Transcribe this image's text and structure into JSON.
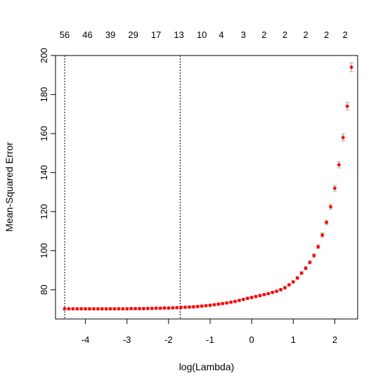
{
  "chart_data": {
    "type": "scatter",
    "title": "",
    "xlabel": "log(Lambda)",
    "ylabel": "Mean-Squared Error",
    "xlim": [
      -4.72,
      2.55
    ],
    "ylim": [
      65,
      200
    ],
    "x_ticks": [
      {
        "value": -4,
        "label": "-4"
      },
      {
        "value": -3,
        "label": "-3"
      },
      {
        "value": -2,
        "label": "-2"
      },
      {
        "value": -1,
        "label": "-1"
      },
      {
        "value": 0,
        "label": "0"
      },
      {
        "value": 1,
        "label": "1"
      },
      {
        "value": 2,
        "label": "2"
      }
    ],
    "y_ticks": [
      {
        "value": 80,
        "label": "80"
      },
      {
        "value": 100,
        "label": "100"
      },
      {
        "value": 120,
        "label": "120"
      },
      {
        "value": 140,
        "label": "140"
      },
      {
        "value": 160,
        "label": "160"
      },
      {
        "value": 180,
        "label": "180"
      },
      {
        "value": 200,
        "label": "200"
      }
    ],
    "top_axis": [
      {
        "value": -4.5,
        "label": "56"
      },
      {
        "value": -3.95,
        "label": "46"
      },
      {
        "value": -3.4,
        "label": "39"
      },
      {
        "value": -2.85,
        "label": "29"
      },
      {
        "value": -2.3,
        "label": "17"
      },
      {
        "value": -1.75,
        "label": "13"
      },
      {
        "value": -1.2,
        "label": "10"
      },
      {
        "value": -0.73,
        "label": "4"
      },
      {
        "value": -0.2,
        "label": "3"
      },
      {
        "value": 0.3,
        "label": "2"
      },
      {
        "value": 0.8,
        "label": "2"
      },
      {
        "value": 1.3,
        "label": "2"
      },
      {
        "value": 1.8,
        "label": "2"
      },
      {
        "value": 2.25,
        "label": "2"
      }
    ],
    "vlines": [
      -4.5,
      -1.72
    ],
    "point_color": "#ff0000",
    "errorbar_color": "#a9a9a9",
    "grid": false,
    "legend": "none",
    "series": [
      {
        "x": [
          -4.5,
          -4.4,
          -4.3,
          -4.2,
          -4.1,
          -4.0,
          -3.9,
          -3.8,
          -3.7,
          -3.6,
          -3.5,
          -3.4,
          -3.3,
          -3.2,
          -3.1,
          -3.0,
          -2.9,
          -2.8,
          -2.7,
          -2.6,
          -2.5,
          -2.4,
          -2.3,
          -2.2,
          -2.1,
          -2.0,
          -1.9,
          -1.8,
          -1.7,
          -1.6,
          -1.5,
          -1.4,
          -1.3,
          -1.2,
          -1.1,
          -1.0,
          -0.9,
          -0.8,
          -0.7,
          -0.6,
          -0.5,
          -0.4,
          -0.3,
          -0.2,
          -0.1,
          0.0,
          0.1,
          0.2,
          0.3,
          0.4,
          0.5,
          0.6,
          0.7,
          0.8,
          0.9,
          1.0,
          1.1,
          1.2,
          1.3,
          1.4,
          1.5,
          1.6,
          1.7,
          1.8,
          1.9,
          2.0,
          2.1,
          2.2,
          2.3,
          2.4
        ],
        "y": [
          70.2,
          70.2,
          70.2,
          70.2,
          70.2,
          70.2,
          70.2,
          70.2,
          70.2,
          70.2,
          70.2,
          70.2,
          70.2,
          70.2,
          70.2,
          70.2,
          70.3,
          70.3,
          70.3,
          70.3,
          70.4,
          70.4,
          70.5,
          70.5,
          70.6,
          70.6,
          70.7,
          70.8,
          70.9,
          71.0,
          71.1,
          71.2,
          71.4,
          71.6,
          71.8,
          72.0,
          72.3,
          72.6,
          72.9,
          73.2,
          73.6,
          74.0,
          74.5,
          75.0,
          75.6,
          76.0,
          76.5,
          77.0,
          77.5,
          78.0,
          78.6,
          79.2,
          80.0,
          81.0,
          82.5,
          84.0,
          86.0,
          88.5,
          91.0,
          94.0,
          97.5,
          102.0,
          108.0,
          114.5,
          122.5,
          132.0,
          144.0,
          158.0,
          174.0,
          194.0
        ],
        "err": [
          0.5,
          0.5,
          0.5,
          0.5,
          0.5,
          0.5,
          0.5,
          0.5,
          0.5,
          0.5,
          0.5,
          0.5,
          0.5,
          0.5,
          0.5,
          0.5,
          0.5,
          0.5,
          0.5,
          0.5,
          0.5,
          0.5,
          0.5,
          0.5,
          0.5,
          0.5,
          0.5,
          0.5,
          0.5,
          0.5,
          0.5,
          0.5,
          0.5,
          0.5,
          0.5,
          0.5,
          0.5,
          0.5,
          0.5,
          0.5,
          0.5,
          0.5,
          0.5,
          0.5,
          0.5,
          0.5,
          0.5,
          0.5,
          0.5,
          0.5,
          0.5,
          0.5,
          0.5,
          0.6,
          0.6,
          0.6,
          0.7,
          0.7,
          0.8,
          0.8,
          0.9,
          1.0,
          1.1,
          1.2,
          1.3,
          1.5,
          1.6,
          1.8,
          2.0,
          2.2
        ]
      }
    ]
  }
}
